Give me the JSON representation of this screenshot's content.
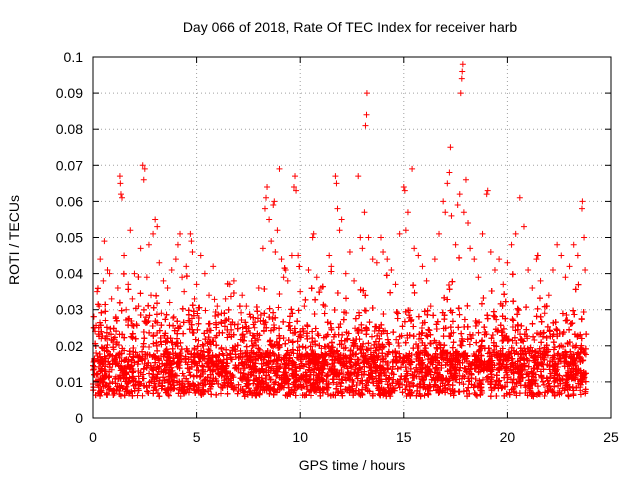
{
  "chart_data": {
    "type": "scatter",
    "title": "Day 066 of 2018, Rate Of TEC Index for receiver harb",
    "xlabel": "GPS time / hours",
    "ylabel": "ROTI / TECUs",
    "xlim": [
      0,
      25
    ],
    "ylim": [
      0,
      0.1
    ],
    "xticks": [
      0,
      5,
      10,
      15,
      20,
      25
    ],
    "xtick_labels": [
      "0",
      "5",
      "10",
      "15",
      "20",
      "25"
    ],
    "yticks": [
      0,
      0.01,
      0.02,
      0.03,
      0.04,
      0.05,
      0.06,
      0.07,
      0.08,
      0.09,
      0.1
    ],
    "ytick_labels": [
      "0",
      "0.01",
      "0.02",
      "0.03",
      "0.04",
      "0.05",
      "0.06",
      "0.07",
      "0.08",
      "0.09",
      "0.1"
    ],
    "grid": true,
    "marker": "plus",
    "marker_color": "#ff0000",
    "points": [
      [
        0.05,
        0.012
      ],
      [
        0.1,
        0.024
      ],
      [
        0.15,
        0.018
      ],
      [
        0.2,
        0.035
      ],
      [
        0.25,
        0.009
      ],
      [
        0.3,
        0.031
      ],
      [
        0.35,
        0.044
      ],
      [
        0.4,
        0.022
      ],
      [
        0.45,
        0.015
      ],
      [
        0.5,
        0.038
      ],
      [
        0.55,
        0.049
      ],
      [
        0.6,
        0.027
      ],
      [
        0.7,
        0.041
      ],
      [
        0.8,
        0.04
      ],
      [
        0.9,
        0.033
      ],
      [
        1.0,
        0.019
      ],
      [
        1.1,
        0.028
      ],
      [
        1.2,
        0.036
      ],
      [
        1.3,
        0.067
      ],
      [
        1.32,
        0.065
      ],
      [
        1.35,
        0.062
      ],
      [
        1.4,
        0.061
      ],
      [
        1.5,
        0.045
      ],
      [
        1.6,
        0.03
      ],
      [
        1.7,
        0.037
      ],
      [
        1.8,
        0.052
      ],
      [
        1.9,
        0.033
      ],
      [
        2.0,
        0.04
      ],
      [
        2.1,
        0.026
      ],
      [
        2.2,
        0.031
      ],
      [
        2.3,
        0.047
      ],
      [
        2.4,
        0.07
      ],
      [
        2.45,
        0.066
      ],
      [
        2.5,
        0.069
      ],
      [
        2.6,
        0.039
      ],
      [
        2.7,
        0.048
      ],
      [
        2.8,
        0.034
      ],
      [
        2.9,
        0.051
      ],
      [
        3.0,
        0.055
      ],
      [
        3.1,
        0.053
      ],
      [
        3.2,
        0.043
      ],
      [
        3.3,
        0.029
      ],
      [
        3.4,
        0.038
      ],
      [
        3.5,
        0.021
      ],
      [
        3.6,
        0.036
      ],
      [
        3.7,
        0.032
      ],
      [
        3.8,
        0.041
      ],
      [
        3.9,
        0.028
      ],
      [
        4.0,
        0.044
      ],
      [
        4.1,
        0.048
      ],
      [
        4.2,
        0.051
      ],
      [
        4.3,
        0.039
      ],
      [
        4.4,
        0.035
      ],
      [
        4.5,
        0.042
      ],
      [
        4.6,
        0.027
      ],
      [
        4.7,
        0.051
      ],
      [
        4.75,
        0.049
      ],
      [
        4.8,
        0.046
      ],
      [
        4.9,
        0.033
      ],
      [
        5.0,
        0.037
      ],
      [
        5.2,
        0.045
      ],
      [
        5.4,
        0.04
      ],
      [
        5.6,
        0.034
      ],
      [
        5.8,
        0.042
      ],
      [
        6.0,
        0.031
      ],
      [
        6.2,
        0.029
      ],
      [
        6.4,
        0.033
      ],
      [
        6.6,
        0.037
      ],
      [
        6.8,
        0.038
      ],
      [
        7.0,
        0.026
      ],
      [
        7.2,
        0.034
      ],
      [
        7.4,
        0.031
      ],
      [
        7.6,
        0.028
      ],
      [
        7.8,
        0.025
      ],
      [
        8.0,
        0.036
      ],
      [
        8.2,
        0.047
      ],
      [
        8.3,
        0.058
      ],
      [
        8.35,
        0.061
      ],
      [
        8.4,
        0.064
      ],
      [
        8.5,
        0.055
      ],
      [
        8.6,
        0.049
      ],
      [
        8.7,
        0.059
      ],
      [
        8.75,
        0.06
      ],
      [
        8.8,
        0.046
      ],
      [
        8.9,
        0.052
      ],
      [
        9.0,
        0.069
      ],
      [
        9.1,
        0.044
      ],
      [
        9.2,
        0.039
      ],
      [
        9.3,
        0.041
      ],
      [
        9.4,
        0.038
      ],
      [
        9.6,
        0.045
      ],
      [
        9.7,
        0.064
      ],
      [
        9.75,
        0.067
      ],
      [
        9.8,
        0.063
      ],
      [
        9.9,
        0.045
      ],
      [
        10.0,
        0.035
      ],
      [
        10.2,
        0.031
      ],
      [
        10.4,
        0.041
      ],
      [
        10.6,
        0.05
      ],
      [
        10.65,
        0.051
      ],
      [
        10.8,
        0.039
      ],
      [
        11.0,
        0.036
      ],
      [
        11.2,
        0.031
      ],
      [
        11.4,
        0.045
      ],
      [
        11.5,
        0.042
      ],
      [
        11.7,
        0.067
      ],
      [
        11.75,
        0.065
      ],
      [
        11.8,
        0.058
      ],
      [
        11.9,
        0.052
      ],
      [
        12.0,
        0.055
      ],
      [
        12.2,
        0.04
      ],
      [
        12.4,
        0.046
      ],
      [
        12.6,
        0.038
      ],
      [
        12.8,
        0.067
      ],
      [
        12.9,
        0.05
      ],
      [
        13.0,
        0.047
      ],
      [
        13.1,
        0.057
      ],
      [
        13.15,
        0.081
      ],
      [
        13.2,
        0.084
      ],
      [
        13.22,
        0.09
      ],
      [
        13.3,
        0.05
      ],
      [
        13.5,
        0.044
      ],
      [
        13.7,
        0.043
      ],
      [
        13.9,
        0.05
      ],
      [
        14.0,
        0.046
      ],
      [
        14.2,
        0.044
      ],
      [
        14.4,
        0.041
      ],
      [
        14.6,
        0.037
      ],
      [
        14.8,
        0.051
      ],
      [
        15.0,
        0.064
      ],
      [
        15.05,
        0.063
      ],
      [
        15.1,
        0.052
      ],
      [
        15.2,
        0.057
      ],
      [
        15.4,
        0.069
      ],
      [
        15.5,
        0.047
      ],
      [
        15.7,
        0.045
      ],
      [
        15.9,
        0.042
      ],
      [
        16.1,
        0.038
      ],
      [
        16.3,
        0.031
      ],
      [
        16.5,
        0.044
      ],
      [
        16.7,
        0.051
      ],
      [
        16.9,
        0.06
      ],
      [
        17.0,
        0.057
      ],
      [
        17.1,
        0.065
      ],
      [
        17.2,
        0.068
      ],
      [
        17.25,
        0.075
      ],
      [
        17.3,
        0.056
      ],
      [
        17.5,
        0.048
      ],
      [
        17.6,
        0.059
      ],
      [
        17.7,
        0.062
      ],
      [
        17.75,
        0.09
      ],
      [
        17.8,
        0.094
      ],
      [
        17.82,
        0.096
      ],
      [
        17.85,
        0.098
      ],
      [
        17.9,
        0.057
      ],
      [
        18.0,
        0.066
      ],
      [
        18.1,
        0.054
      ],
      [
        18.2,
        0.047
      ],
      [
        18.4,
        0.044
      ],
      [
        18.6,
        0.039
      ],
      [
        18.8,
        0.051
      ],
      [
        19.0,
        0.062
      ],
      [
        19.05,
        0.063
      ],
      [
        19.2,
        0.046
      ],
      [
        19.4,
        0.041
      ],
      [
        19.6,
        0.044
      ],
      [
        19.8,
        0.037
      ],
      [
        20.0,
        0.043
      ],
      [
        20.2,
        0.048
      ],
      [
        20.4,
        0.051
      ],
      [
        20.6,
        0.061
      ],
      [
        20.8,
        0.053
      ],
      [
        21.0,
        0.041
      ],
      [
        21.2,
        0.036
      ],
      [
        21.4,
        0.044
      ],
      [
        21.6,
        0.038
      ],
      [
        21.8,
        0.029
      ],
      [
        22.0,
        0.034
      ],
      [
        22.2,
        0.041
      ],
      [
        22.4,
        0.048
      ],
      [
        22.6,
        0.045
      ],
      [
        22.8,
        0.039
      ],
      [
        23.0,
        0.042
      ],
      [
        23.2,
        0.048
      ],
      [
        23.4,
        0.045
      ],
      [
        23.6,
        0.058
      ],
      [
        23.62,
        0.06
      ],
      [
        23.7,
        0.05
      ],
      [
        23.75,
        0.041
      ]
    ]
  }
}
